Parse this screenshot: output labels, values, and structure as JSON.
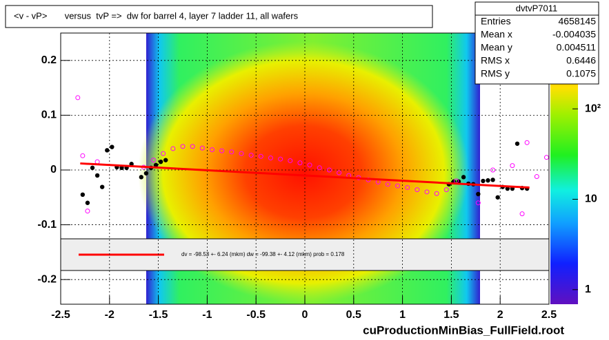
{
  "chart_data": {
    "type": "profile",
    "title": "<v - vP>       versus  tvP =>  dw for barrel 4, layer 7 ladder 11, all wafers",
    "footer": "cuProductionMinBias_FullField.root",
    "xlim": [
      -2.5,
      2.5
    ],
    "xticks": [
      -2.5,
      -2,
      -1.5,
      -1,
      -0.5,
      0,
      0.5,
      1,
      1.5,
      2,
      2.5
    ],
    "ylim": [
      -0.245,
      0.25
    ],
    "yticks": [
      -0.2,
      -0.1,
      0,
      0.1,
      0.2
    ],
    "grid": true,
    "zlim": [
      0.69,
      690
    ],
    "zlog": true,
    "zticks": [
      1,
      10,
      {
        "value": 100,
        "label": "10²"
      }
    ],
    "series": [
      {
        "marker": "dot",
        "color": "#000000",
        "x": [
          -2.275,
          -2.225,
          -2.175,
          -2.125,
          -2.075,
          -2.025,
          -1.975,
          -1.925,
          -1.875,
          -1.825,
          -1.775,
          -1.675,
          -1.625,
          -1.575,
          -1.525,
          -1.475,
          -1.425,
          1.475,
          1.525,
          1.575,
          1.625,
          1.675,
          1.725,
          1.775,
          1.825,
          1.875,
          1.925,
          1.975,
          2.025,
          2.075,
          2.125,
          2.175,
          2.225,
          2.275
        ],
        "values": [
          -0.045,
          -0.06,
          0.004,
          -0.01,
          -0.031,
          0.036,
          0.042,
          0.005,
          0.004,
          0.004,
          0.011,
          -0.013,
          -0.006,
          0.004,
          0.009,
          0.015,
          0.018,
          -0.026,
          -0.021,
          -0.021,
          -0.013,
          -0.025,
          -0.026,
          -0.044,
          -0.02,
          -0.019,
          -0.018,
          -0.05,
          -0.031,
          -0.034,
          -0.034,
          0.048,
          -0.033,
          -0.034
        ]
      },
      {
        "marker": "circle",
        "color": "#ff00ff",
        "x": [
          -2.325,
          -2.275,
          -2.225,
          -2.125,
          -1.65,
          -1.55,
          -1.45,
          -1.35,
          -1.25,
          -1.15,
          -1.05,
          -0.95,
          -0.85,
          -0.75,
          -0.65,
          -0.55,
          -0.45,
          -0.35,
          -0.25,
          -0.15,
          -0.05,
          0.05,
          0.15,
          0.25,
          0.35,
          0.45,
          0.55,
          0.65,
          0.75,
          0.85,
          0.95,
          1.05,
          1.15,
          1.25,
          1.35,
          1.45,
          1.55,
          1.775,
          1.925,
          2.125,
          2.225,
          2.275,
          2.375,
          2.475
        ],
        "values": [
          0.132,
          0.026,
          -0.075,
          0.015,
          0.005,
          0.018,
          0.03,
          0.039,
          0.043,
          0.043,
          0.04,
          0.037,
          0.035,
          0.033,
          0.03,
          0.027,
          0.025,
          0.022,
          0.02,
          0.017,
          0.013,
          0.009,
          0.004,
          0,
          -0.005,
          -0.01,
          -0.014,
          -0.018,
          -0.022,
          -0.026,
          -0.029,
          -0.032,
          -0.036,
          -0.04,
          -0.043,
          -0.036,
          -0.02,
          -0.06,
          0,
          0.008,
          -0.08,
          0.05,
          -0.012,
          0.023
        ]
      },
      {
        "marker": "line",
        "color": "#ff0000",
        "x": [
          -2.3,
          2.3
        ],
        "values": [
          0.012,
          -0.032
        ]
      }
    ],
    "legend": {
      "text": "dv =  -98.53 +-  6.24 (mkm) dw =  -99.38 +-  4.12 (mkm) prob = 0.178"
    },
    "stats": {
      "name": "dvtvP7011",
      "rows": [
        {
          "label": "Entries",
          "value": 4658145
        },
        {
          "label": "Mean x",
          "value": -0.004035
        },
        {
          "label": "Mean y",
          "value": 0.004511
        },
        {
          "label": "RMS x",
          "value": 0.6446
        },
        {
          "label": "RMS y",
          "value": 0.1075
        }
      ]
    }
  }
}
